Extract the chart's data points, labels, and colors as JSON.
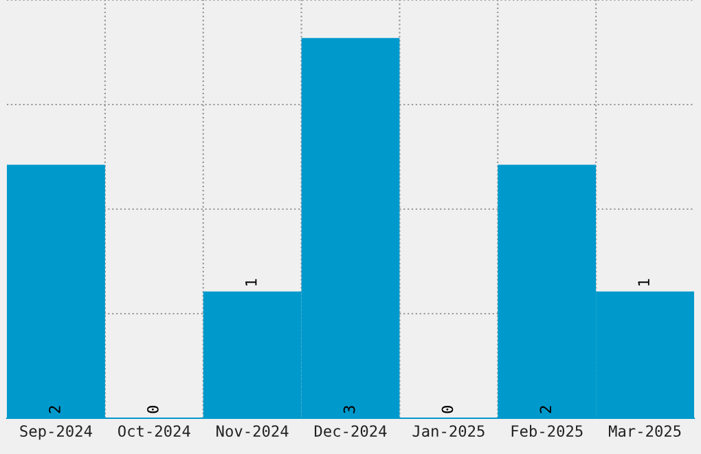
{
  "chart_data": {
    "type": "bar",
    "categories": [
      "Sep-2024",
      "Oct-2024",
      "Nov-2024",
      "Dec-2024",
      "Jan-2025",
      "Feb-2025",
      "Mar-2025"
    ],
    "values": [
      2,
      0,
      1,
      3,
      0,
      2,
      1
    ],
    "color": "#0099cc",
    "ylim": [
      0,
      3.3
    ],
    "yticks": [
      {
        "value": 0.825,
        "label": null
      },
      {
        "value": 1.65,
        "label": null
      },
      {
        "value": 2.475,
        "label": null
      },
      {
        "value": 3.3,
        "label": null
      }
    ],
    "tick_labels": "x",
    "grid": true,
    "data_labels": true
  }
}
